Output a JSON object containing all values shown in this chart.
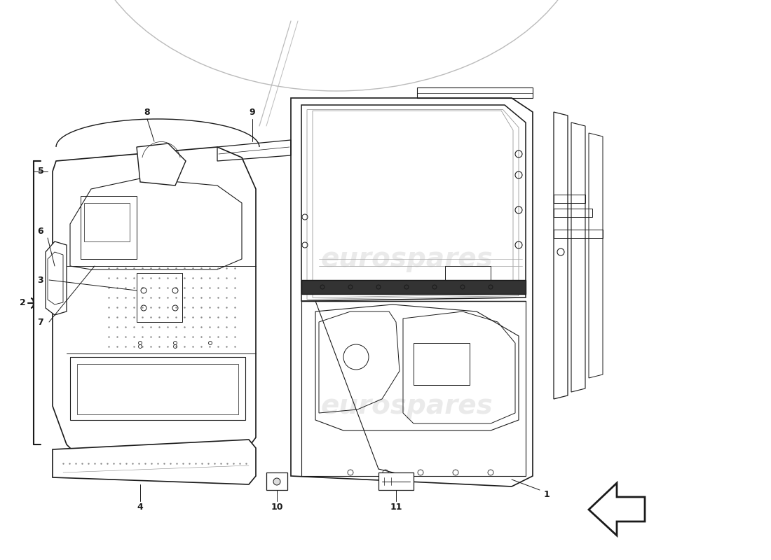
{
  "background_color": "#ffffff",
  "line_color": "#1a1a1a",
  "wm_color": "#cccccc",
  "wm_text": "eurospares",
  "fig_width": 11.0,
  "fig_height": 8.0,
  "dpi": 100
}
